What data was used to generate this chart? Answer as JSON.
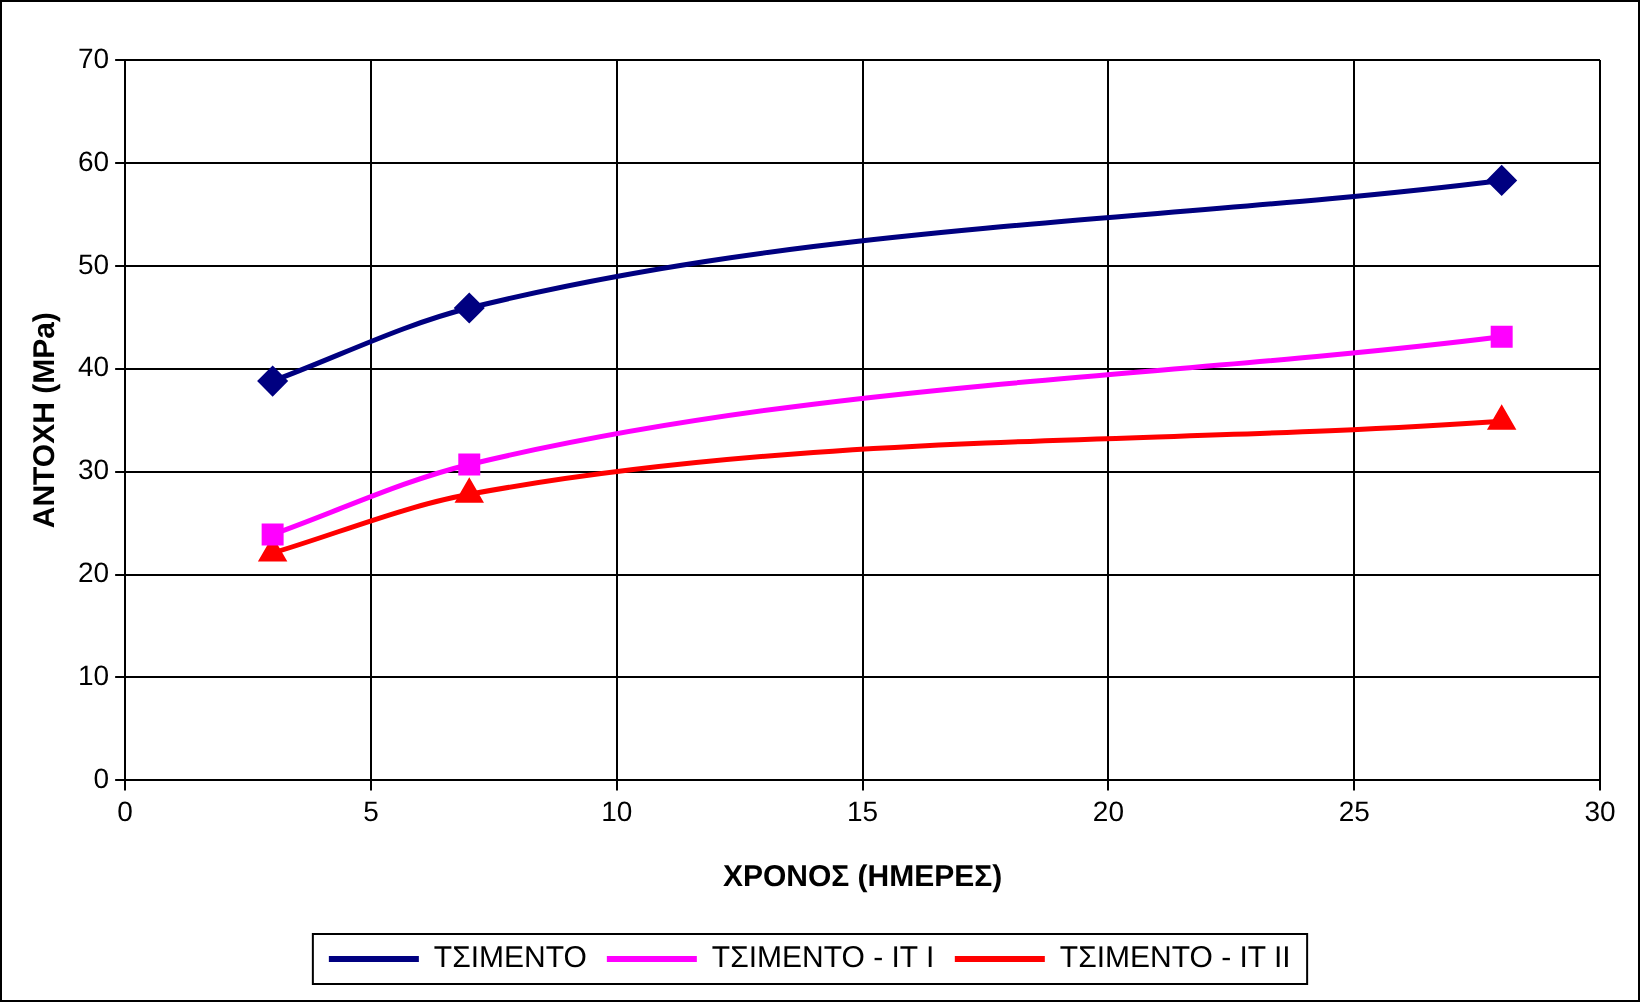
{
  "chart_data": {
    "type": "line",
    "xlabel": "ΧΡΟΝΟΣ (ΗΜΕΡΕΣ)",
    "ylabel": "ΑΝΤΟΧΗ (MPa)",
    "x": [
      3,
      7,
      28
    ],
    "series": [
      {
        "name": "ΤΣΙΜΕΝΤΟ",
        "color": "#000080",
        "marker": "diamond",
        "values": [
          38.8,
          45.9,
          58.3
        ]
      },
      {
        "name": "ΤΣΙΜΕΝΤΟ - ΙΤ Ι",
        "color": "#ff00ff",
        "marker": "square",
        "values": [
          23.9,
          30.7,
          43.1
        ]
      },
      {
        "name": "ΤΣΙΜΕΝΤΟ - ΙΤ ΙΙ",
        "color": "#ff0000",
        "marker": "triangle",
        "values": [
          22.1,
          27.8,
          34.9
        ]
      }
    ],
    "xlim": [
      0,
      30
    ],
    "xticks": [
      0,
      5,
      10,
      15,
      20,
      25,
      30
    ],
    "ylim": [
      0,
      70
    ],
    "yticks": [
      0,
      10,
      20,
      30,
      40,
      50,
      60,
      70
    ],
    "grid": true,
    "legend": "bottom"
  }
}
